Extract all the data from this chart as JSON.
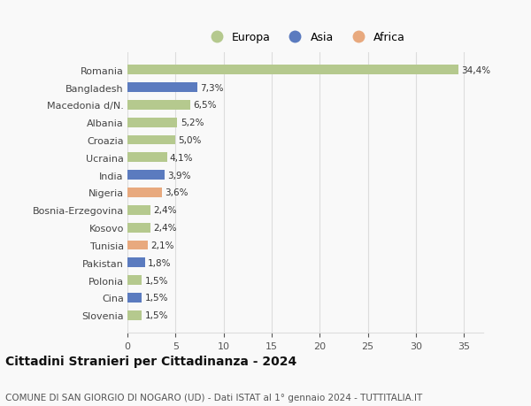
{
  "categories": [
    "Slovenia",
    "Cina",
    "Polonia",
    "Pakistan",
    "Tunisia",
    "Kosovo",
    "Bosnia-Erzegovina",
    "Nigeria",
    "India",
    "Ucraina",
    "Croazia",
    "Albania",
    "Macedonia d/N.",
    "Bangladesh",
    "Romania"
  ],
  "values": [
    1.5,
    1.5,
    1.5,
    1.8,
    2.1,
    2.4,
    2.4,
    3.6,
    3.9,
    4.1,
    5.0,
    5.2,
    6.5,
    7.3,
    34.4
  ],
  "labels": [
    "1,5%",
    "1,5%",
    "1,5%",
    "1,8%",
    "2,1%",
    "2,4%",
    "2,4%",
    "3,6%",
    "3,9%",
    "4,1%",
    "5,0%",
    "5,2%",
    "6,5%",
    "7,3%",
    "34,4%"
  ],
  "colors": [
    "#b5c98e",
    "#5b7bbf",
    "#b5c98e",
    "#5b7bbf",
    "#e8a97e",
    "#b5c98e",
    "#b5c98e",
    "#e8a97e",
    "#5b7bbf",
    "#b5c98e",
    "#b5c98e",
    "#b5c98e",
    "#b5c98e",
    "#5b7bbf",
    "#b5c98e"
  ],
  "legend": [
    {
      "label": "Europa",
      "color": "#b5c98e"
    },
    {
      "label": "Asia",
      "color": "#5b7bbf"
    },
    {
      "label": "Africa",
      "color": "#e8a97e"
    }
  ],
  "xlim": [
    0,
    37
  ],
  "xticks": [
    0,
    5,
    10,
    15,
    20,
    25,
    30,
    35
  ],
  "title": "Cittadini Stranieri per Cittadinanza - 2024",
  "subtitle": "COMUNE DI SAN GIORGIO DI NOGARO (UD) - Dati ISTAT al 1° gennaio 2024 - TUTTITALIA.IT",
  "bg_color": "#f9f9f9",
  "grid_color": "#dddddd",
  "bar_height": 0.55,
  "label_fontsize": 7.5,
  "ytick_fontsize": 8,
  "xtick_fontsize": 8,
  "title_fontsize": 10,
  "subtitle_fontsize": 7.5
}
